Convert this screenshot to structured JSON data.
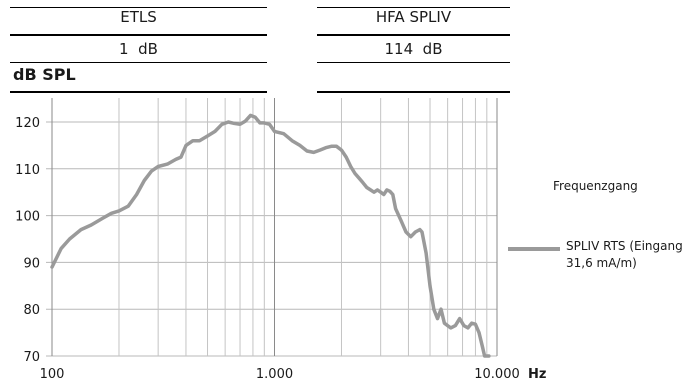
{
  "spec_table": {
    "left_header": "ETLS",
    "right_header": "HFA SPLIV",
    "left_value": "1  dB",
    "right_value": "114  dB"
  },
  "unit_title": "dB SPL",
  "legend": {
    "title": "Frequenzgang",
    "series_label_line1": "SPLIV RTS (Eingang",
    "series_label_line2": "31,6 mA/m)",
    "color": "#9a9a9a"
  },
  "chart_data": {
    "type": "line",
    "xscale": "log",
    "xlim": [
      100,
      10000
    ],
    "ylim": [
      70,
      122
    ],
    "xlabel": "Hz",
    "ylabel": "dB SPL",
    "grid": true,
    "legend_position": "right",
    "x_ticks": [
      100,
      1000,
      10000
    ],
    "x_tick_labels": [
      "100",
      "1.000",
      "10.000"
    ],
    "y_ticks": [
      70,
      80,
      90,
      100,
      110,
      120
    ],
    "y_tick_labels": [
      "70",
      "80",
      "90",
      "100",
      "110",
      "120"
    ],
    "series": [
      {
        "name": "SPLIV RTS (Eingang 31,6 mA/m)",
        "x": [
          100,
          110,
          120,
          135,
          150,
          170,
          185,
          200,
          220,
          240,
          260,
          280,
          300,
          330,
          360,
          380,
          400,
          430,
          460,
          500,
          540,
          580,
          620,
          660,
          700,
          740,
          780,
          820,
          860,
          900,
          950,
          1000,
          1100,
          1200,
          1300,
          1400,
          1500,
          1600,
          1700,
          1800,
          1900,
          2000,
          2100,
          2200,
          2300,
          2400,
          2500,
          2600,
          2700,
          2800,
          2900,
          3000,
          3100,
          3200,
          3300,
          3400,
          3500,
          3700,
          3900,
          4100,
          4300,
          4500,
          4600,
          4800,
          5000,
          5200,
          5400,
          5600,
          5800,
          6000,
          6200,
          6500,
          6800,
          7100,
          7400,
          7700,
          8000,
          8300,
          8600,
          8800,
          9000,
          9200
        ],
        "y": [
          89,
          93,
          95,
          97,
          98,
          99.5,
          100.5,
          101,
          102,
          104.5,
          107.5,
          109.5,
          110.5,
          111,
          112,
          112.5,
          115,
          116,
          116,
          117,
          118,
          119.5,
          120,
          119.7,
          119.5,
          120.2,
          121.4,
          121,
          119.8,
          119.8,
          119.5,
          118,
          117.5,
          116,
          115,
          113.8,
          113.5,
          114,
          114.5,
          114.8,
          114.8,
          114,
          112.5,
          110.5,
          109,
          108,
          107,
          106,
          105.5,
          105,
          105.5,
          105,
          104.5,
          105.5,
          105.2,
          104.5,
          101.5,
          99,
          96.5,
          95.5,
          96.5,
          97,
          96.5,
          92,
          85,
          80,
          78,
          80,
          77,
          76.5,
          76,
          76.5,
          78,
          76.5,
          76,
          77,
          76.8,
          75,
          72,
          70,
          70,
          70
        ]
      }
    ]
  }
}
